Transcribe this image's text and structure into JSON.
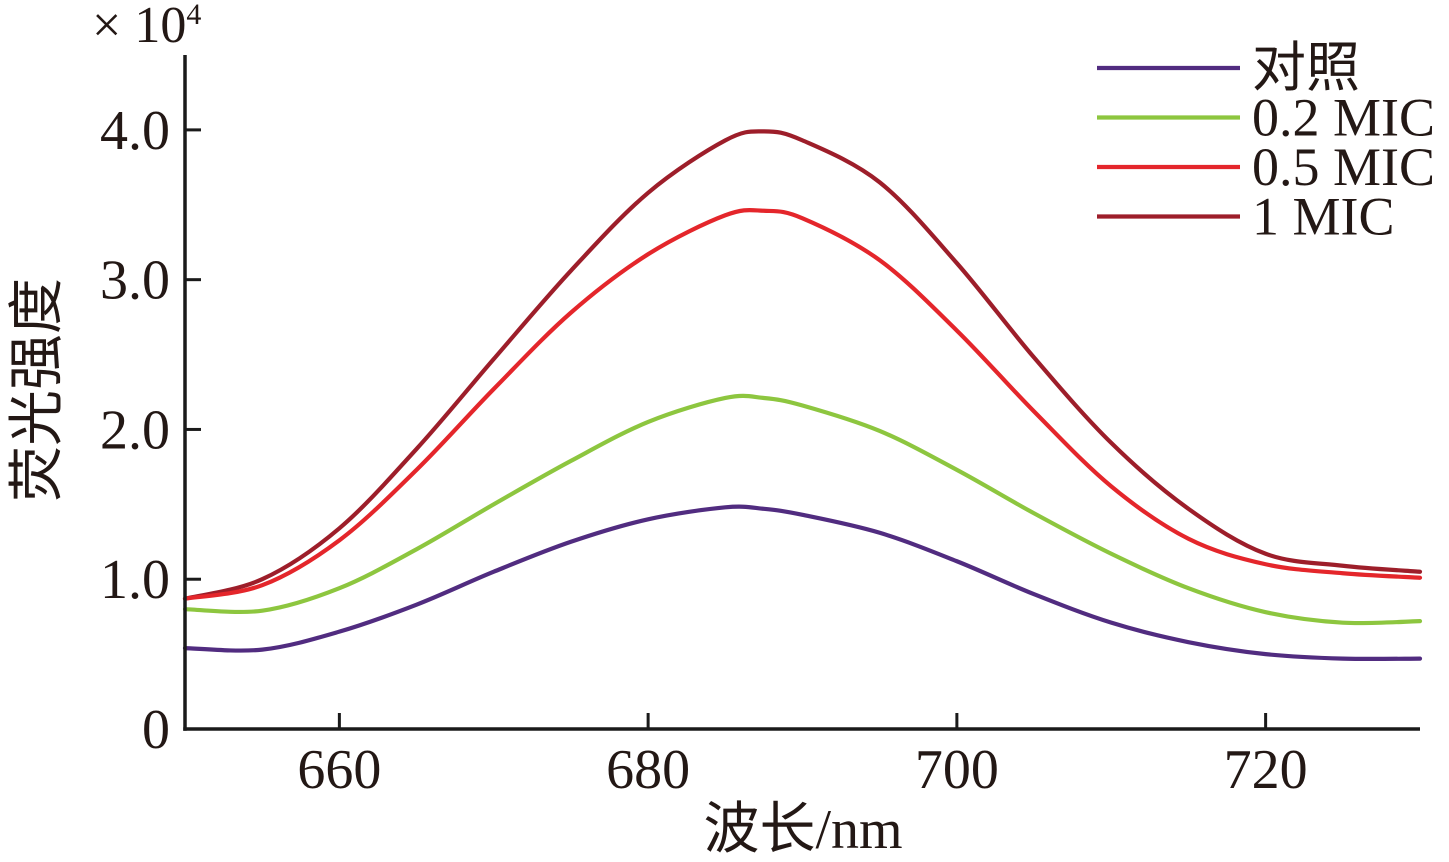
{
  "chart_data": {
    "type": "line",
    "xlabel": "波长/nm",
    "ylabel": "荧光强度",
    "y_multiplier": {
      "base": "× 10",
      "exponent": "4"
    },
    "xlim": [
      650,
      730
    ],
    "ylim": [
      0,
      4.5
    ],
    "x_ticks": {
      "values": [
        660,
        680,
        700,
        720
      ],
      "labels": [
        "660",
        "680",
        "700",
        "720"
      ]
    },
    "y_ticks": {
      "values": [
        0,
        1,
        2,
        3,
        4
      ],
      "labels": [
        "0",
        "1.0",
        "2.0",
        "3.0",
        "4.0"
      ]
    },
    "grid": false,
    "legend_position": "top-right",
    "x": [
      650,
      655,
      660,
      665,
      670,
      675,
      680,
      685,
      687.5,
      690,
      695,
      700,
      705,
      710,
      715,
      720,
      725,
      730
    ],
    "series": [
      {
        "name": "对照",
        "color": "#512c80",
        "values": [
          0.54,
          0.53,
          0.65,
          0.83,
          1.05,
          1.25,
          1.4,
          1.48,
          1.47,
          1.43,
          1.31,
          1.12,
          0.9,
          0.71,
          0.58,
          0.5,
          0.47,
          0.47
        ]
      },
      {
        "name": "0.2 MIC",
        "color": "#8dc63f",
        "values": [
          0.8,
          0.79,
          0.94,
          1.2,
          1.5,
          1.79,
          2.05,
          2.21,
          2.21,
          2.16,
          1.99,
          1.73,
          1.44,
          1.17,
          0.94,
          0.78,
          0.71,
          0.72
        ]
      },
      {
        "name": "0.5 MIC",
        "color": "#e4262b",
        "values": [
          0.87,
          0.96,
          1.26,
          1.73,
          2.27,
          2.78,
          3.17,
          3.43,
          3.46,
          3.41,
          3.13,
          2.66,
          2.12,
          1.62,
          1.27,
          1.1,
          1.04,
          1.01
        ]
      },
      {
        "name": "1 MIC",
        "color": "#9d1e2a",
        "values": [
          0.87,
          1.0,
          1.34,
          1.87,
          2.47,
          3.06,
          3.58,
          3.93,
          3.99,
          3.93,
          3.65,
          3.11,
          2.48,
          1.91,
          1.47,
          1.17,
          1.09,
          1.05
        ]
      }
    ]
  }
}
